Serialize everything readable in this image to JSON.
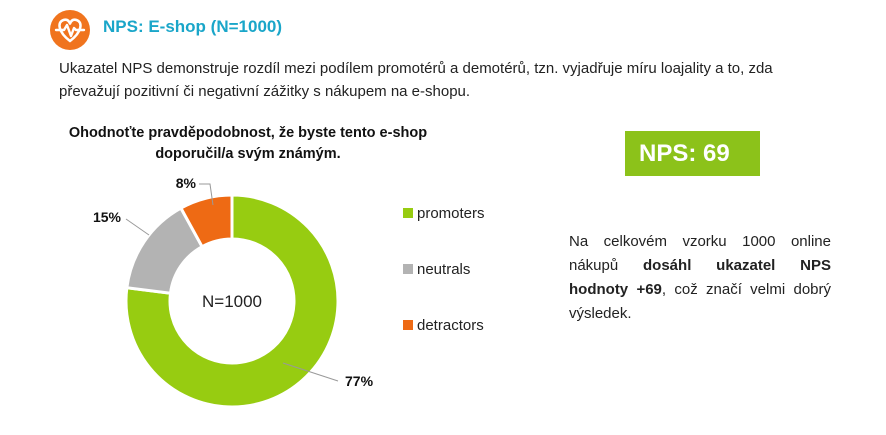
{
  "header": {
    "title": "NPS: E-shop (N=1000)",
    "icon": "heart-pulse-icon",
    "icon_color": "#f0741e",
    "title_color": "#1aa6c9"
  },
  "intro": {
    "text": "Ukazatel NPS demonstruje rozdíl mezi podílem promotérů a demotérů, tzn. vyjadřuje míru loajality a to, zda převažují pozitivní či negativní zážitky s nákupem na e-shopu."
  },
  "chart_data": {
    "type": "pie",
    "subtype": "donut",
    "title": "Ohodnoťte pravděpodobnost, že byste tento e-shop doporučil/a svým známým.",
    "center_label": "N=1000",
    "categories": [
      "promoters",
      "neutrals",
      "detractors"
    ],
    "values": [
      77,
      15,
      8
    ],
    "value_labels": [
      "77%",
      "15%",
      "8%"
    ],
    "colors": [
      "#97cc11",
      "#b3b3b3",
      "#ee6a14"
    ],
    "legend_position": "right"
  },
  "nps_badge": {
    "text": "NPS: 69",
    "color": "#8cc21a"
  },
  "summary": {
    "part1": "Na celkovém vzorku 1000 online nákupů ",
    "bold": "dosáhl ukazatel NPS hodnoty +69",
    "part2": ", což značí velmi dobrý výsledek."
  }
}
